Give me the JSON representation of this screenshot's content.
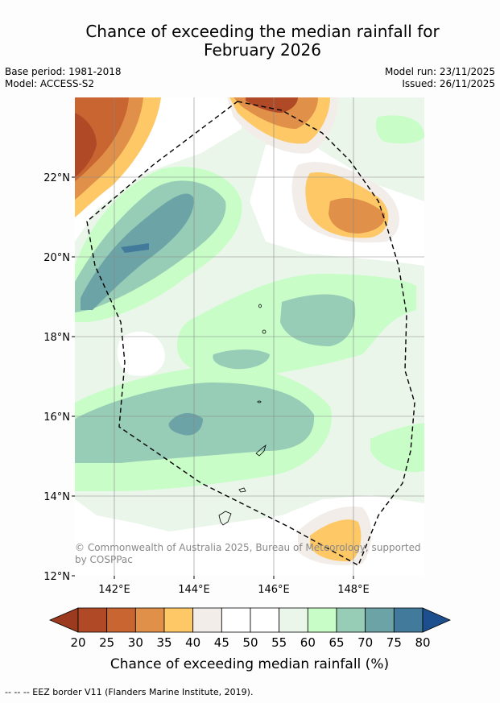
{
  "title_line1": "Chance of exceeding the median rainfall for",
  "title_line2": "February 2026",
  "base_period": "Base period: 1981-2018",
  "model": "Model: ACCESS-S2",
  "model_run": "Model run: 23/11/2025",
  "issued": "Issued: 26/11/2025",
  "lat_labels": [
    "22°N",
    "20°N",
    "18°N",
    "16°N",
    "14°N",
    "12°N"
  ],
  "lon_labels": [
    "142°E",
    "144°E",
    "146°E",
    "148°E"
  ],
  "copyright_line1": "© Commonwealth of Australia 2025, Bureau of Meteorology, supported",
  "copyright_line2": "by COSPPac",
  "colorbar": {
    "ticks": [
      "20",
      "25",
      "30",
      "35",
      "40",
      "45",
      "50",
      "55",
      "60",
      "65",
      "70",
      "75",
      "80"
    ],
    "colors": [
      "#9b3a1e",
      "#b04a26",
      "#c86531",
      "#e09048",
      "#fdc865",
      "#f2ede8",
      "#ffffff",
      "#ffffff",
      "#ebf6eb",
      "#c8fdc8",
      "#97ccb6",
      "#6ca3a6",
      "#427a9b",
      "#1d4f8f"
    ],
    "label": "Chance of exceeding median rainfall (%)"
  },
  "footer": "--  --  -- EEZ border V11 (Flanders Marine Institute, 2019)."
}
